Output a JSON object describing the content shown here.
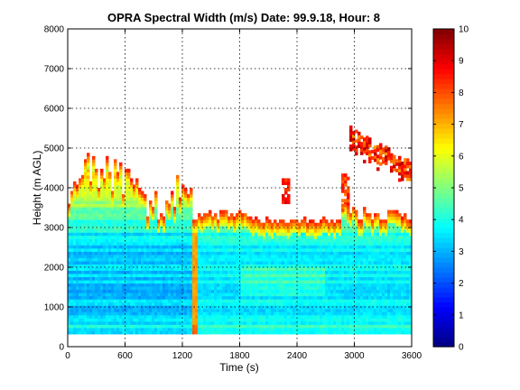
{
  "chart_data": {
    "type": "heatmap",
    "title": "OPRA Spectral Width (m/s)  Date: 99.9.18, Hour: 8",
    "xlabel": "Time (s)",
    "ylabel": "Height (m AGL)",
    "xlim": [
      0,
      3600
    ],
    "ylim": [
      0,
      8000
    ],
    "xticks": [
      0,
      600,
      1200,
      1800,
      2400,
      3000,
      3600
    ],
    "yticks": [
      0,
      1000,
      2000,
      3000,
      4000,
      5000,
      6000,
      7000,
      8000
    ],
    "grid": true,
    "colormap": "jet",
    "colorbar": {
      "range": [
        0,
        10
      ],
      "ticks": [
        0,
        1,
        2,
        3,
        4,
        5,
        6,
        7,
        8,
        9,
        10
      ]
    },
    "data_description": {
      "min_height": 300,
      "segments": [
        {
          "time": [
            0,
            1290
          ],
          "top_height": [
            3400,
            4400
          ],
          "value_range": [
            3,
            9
          ]
        },
        {
          "time": [
            1290,
            1360
          ],
          "top_height": [
            3200,
            3300
          ],
          "value_range": [
            6.5,
            8
          ]
        },
        {
          "time": [
            1360,
            2850
          ],
          "top_height": [
            3100,
            3500
          ],
          "value_range": [
            3,
            8.5
          ]
        },
        {
          "time": [
            2230,
            2320
          ],
          "top_height": [
            3600,
            4200
          ],
          "value_range": [
            8,
            9
          ]
        },
        {
          "time": [
            2850,
            3600
          ],
          "top_height": [
            3000,
            3700
          ],
          "value_range": [
            3,
            9
          ]
        },
        {
          "time": [
            2950,
            3600
          ],
          "top_height": [
            4100,
            5400
          ],
          "value_range": [
            7,
            9.5
          ]
        }
      ]
    }
  }
}
